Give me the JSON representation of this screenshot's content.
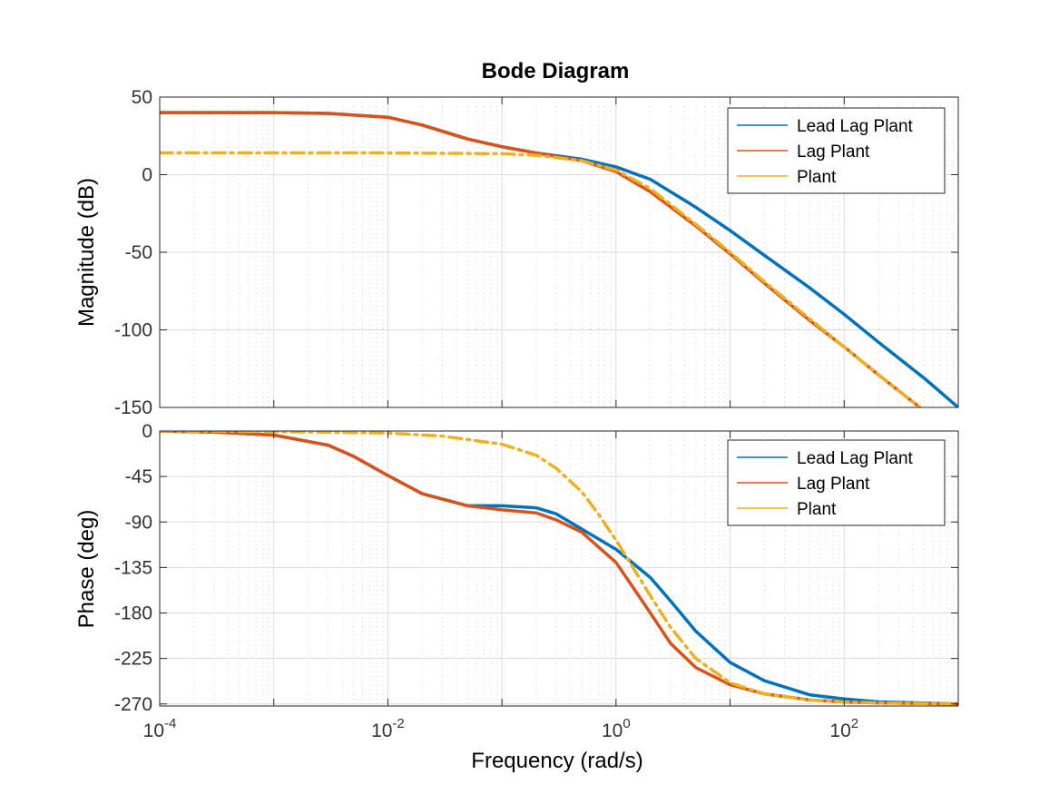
{
  "chart_data": {
    "type": "line",
    "title": "Bode Diagram",
    "xlabel": "Frequency  (rad/s)",
    "x_scale": "log",
    "xlim": [
      0.0001,
      1000
    ],
    "x_tick_labels": [
      {
        "base": "10",
        "exp": "-4"
      },
      {
        "base": "10",
        "exp": "-2"
      },
      {
        "base": "10",
        "exp": "0"
      },
      {
        "base": "10",
        "exp": "2"
      }
    ],
    "grid": true,
    "colors": {
      "Lead Lag Plant": "#0072BD",
      "Lag Plant": "#D95319",
      "Plant": "#EDB120"
    },
    "subplots": [
      {
        "id": "magnitude",
        "ylabel": "Magnitude (dB)",
        "ylim": [
          -150,
          50
        ],
        "yticks": [
          50,
          0,
          -50,
          -100,
          -150
        ],
        "legend": {
          "position": "top-right",
          "entries": [
            "Lead Lag Plant",
            "Lag Plant",
            "Plant"
          ]
        },
        "series": [
          {
            "name": "Lead Lag Plant",
            "style": "solid",
            "x": [
              0.0001,
              0.001,
              0.003,
              0.01,
              0.02,
              0.05,
              0.1,
              0.2,
              0.5,
              1,
              2,
              5,
              10,
              20,
              50,
              100,
              200,
              500,
              1000
            ],
            "y": [
              40,
              40,
              39.5,
              37,
              32,
              23,
              18,
              14,
              10,
              5,
              -3,
              -21,
              -36,
              -52,
              -73,
              -90,
              -108,
              -131,
              -150
            ]
          },
          {
            "name": "Lag Plant",
            "style": "solid",
            "x": [
              0.0001,
              0.001,
              0.003,
              0.01,
              0.02,
              0.05,
              0.1,
              0.2,
              0.5,
              1,
              2,
              5,
              10,
              20,
              50,
              100,
              200,
              500
            ],
            "y": [
              40,
              40,
              39.5,
              37,
              32,
              23,
              18,
              14,
              9,
              2,
              -11,
              -33,
              -51,
              -70,
              -94,
              -111,
              -129,
              -152
            ]
          },
          {
            "name": "Plant",
            "style": "dashdot",
            "x": [
              0.0001,
              0.001,
              0.01,
              0.1,
              0.2,
              0.5,
              1,
              2,
              5,
              10,
              20,
              50,
              100,
              200,
              500
            ],
            "y": [
              14,
              14,
              14,
              13.5,
              12.5,
              9,
              3,
              -9,
              -32,
              -50,
              -69,
              -93,
              -111,
              -129,
              -152
            ]
          }
        ]
      },
      {
        "id": "phase",
        "ylabel": "Phase (deg)",
        "ylim": [
          -272,
          0
        ],
        "yticks": [
          0,
          -45,
          -90,
          -135,
          -180,
          -225,
          -270
        ],
        "legend": {
          "position": "top-right",
          "entries": [
            "Lead Lag Plant",
            "Lag Plant",
            "Plant"
          ]
        },
        "series": [
          {
            "name": "Lead Lag Plant",
            "style": "solid",
            "x": [
              0.0001,
              0.0003,
              0.001,
              0.003,
              0.005,
              0.01,
              0.02,
              0.05,
              0.1,
              0.2,
              0.3,
              0.5,
              1,
              2,
              3,
              5,
              10,
              20,
              50,
              100,
              200,
              1000
            ],
            "y": [
              0,
              -1,
              -4,
              -14,
              -25,
              -44,
              -62,
              -74,
              -74,
              -76,
              -82,
              -97,
              -117,
              -145,
              -168,
              -198,
              -229,
              -247,
              -261,
              -265,
              -268,
              -270
            ]
          },
          {
            "name": "Lag Plant",
            "style": "solid",
            "x": [
              0.0001,
              0.0003,
              0.001,
              0.003,
              0.005,
              0.01,
              0.02,
              0.05,
              0.1,
              0.2,
              0.3,
              0.5,
              1,
              2,
              3,
              5,
              10,
              20,
              50,
              100,
              200,
              1000
            ],
            "y": [
              0,
              -1,
              -4,
              -14,
              -25,
              -44,
              -62,
              -74,
              -78,
              -81,
              -88,
              -100,
              -130,
              -180,
              -210,
              -234,
              -251,
              -260,
              -266,
              -268,
              -269,
              -270
            ]
          },
          {
            "name": "Plant",
            "style": "dashdot",
            "x": [
              0.0001,
              0.001,
              0.01,
              0.03,
              0.1,
              0.2,
              0.3,
              0.5,
              0.7,
              1,
              1.5,
              2,
              3,
              5,
              10,
              20,
              50,
              100,
              200,
              1000
            ],
            "y": [
              0,
              -0.5,
              -2,
              -5,
              -13,
              -24,
              -37,
              -60,
              -82,
              -108,
              -140,
              -163,
              -194,
              -225,
              -249,
              -260,
              -266,
              -268,
              -269,
              -270
            ]
          }
        ]
      }
    ]
  }
}
